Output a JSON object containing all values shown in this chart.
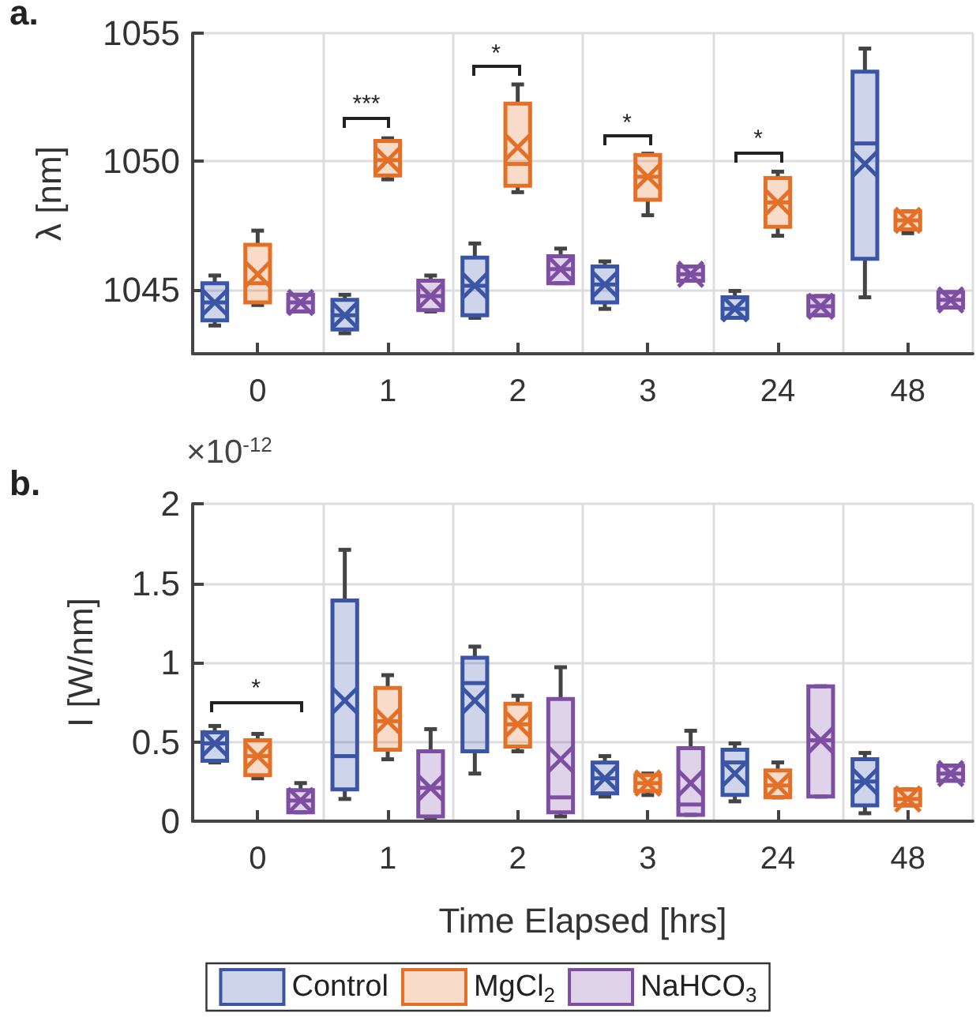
{
  "chart_data": [
    {
      "type": "box",
      "ylabel": "λ [nm]",
      "categories": [
        "0",
        "1",
        "2",
        "3",
        "24",
        "48"
      ],
      "ylim": [
        1042.5,
        1055
      ],
      "yticks": [
        1045,
        1050,
        1055
      ],
      "grid": true,
      "legend": false,
      "annotations": [
        "a.",
        "***",
        "*",
        "*",
        "*"
      ],
      "series": [
        {
          "color": "#3a55a6",
          "boxes": [
            {
              "low": 1043.6,
              "q1": 1043.8,
              "median": 1044.5,
              "q3": 1045.25,
              "high": 1045.55,
              "mean": 1044.5
            },
            {
              "low": 1043.3,
              "q1": 1043.45,
              "median": 1044.0,
              "q3": 1044.6,
              "high": 1044.8,
              "mean": 1044.0
            },
            {
              "low": 1043.9,
              "q1": 1044.0,
              "median": 1045.15,
              "q3": 1046.25,
              "high": 1046.8,
              "mean": 1045.15
            },
            {
              "low": 1044.25,
              "q1": 1044.5,
              "median": 1045.2,
              "q3": 1045.9,
              "high": 1046.1,
              "mean": 1045.2
            },
            {
              "low": 1043.9,
              "q1": 1043.9,
              "median": 1044.25,
              "q3": 1044.7,
              "high": 1044.95,
              "mean": 1044.25
            },
            {
              "low": 1044.7,
              "q1": 1046.2,
              "median": 1050.7,
              "q3": 1053.5,
              "high": 1054.4,
              "mean": 1049.9
            }
          ]
        },
        {
          "color": "#e46f26",
          "boxes": [
            {
              "low": 1044.4,
              "q1": 1044.5,
              "median": 1045.25,
              "q3": 1046.75,
              "high": 1047.3,
              "mean": 1045.6
            },
            {
              "low": 1049.3,
              "q1": 1049.45,
              "median": 1050.05,
              "q3": 1050.8,
              "high": 1050.9,
              "mean": 1050.05
            },
            {
              "low": 1048.8,
              "q1": 1049.05,
              "median": 1049.9,
              "q3": 1052.25,
              "high": 1053.0,
              "mean": 1050.55
            },
            {
              "low": 1047.9,
              "q1": 1048.5,
              "median": 1049.4,
              "q3": 1050.25,
              "high": 1050.3,
              "mean": 1049.4
            },
            {
              "low": 1047.1,
              "q1": 1047.45,
              "median": 1048.4,
              "q3": 1049.35,
              "high": 1049.6,
              "mean": 1048.4
            },
            {
              "low": 1047.2,
              "q1": 1047.35,
              "median": 1047.7,
              "q3": 1048.05,
              "high": 1048.05,
              "mean": 1047.7
            }
          ]
        },
        {
          "color": "#7d4ea2",
          "boxes": [
            {
              "low": 1044.15,
              "q1": 1044.15,
              "median": 1044.5,
              "q3": 1044.8,
              "high": 1044.8,
              "mean": 1044.5
            },
            {
              "low": 1044.15,
              "q1": 1044.2,
              "median": 1044.75,
              "q3": 1045.35,
              "high": 1045.55,
              "mean": 1044.75
            },
            {
              "low": 1045.25,
              "q1": 1045.25,
              "median": 1045.8,
              "q3": 1046.3,
              "high": 1046.6,
              "mean": 1045.8
            },
            {
              "low": 1045.35,
              "q1": 1045.35,
              "median": 1045.6,
              "q3": 1045.9,
              "high": 1045.9,
              "mean": 1045.6
            },
            {
              "low": 1044.0,
              "q1": 1044.0,
              "median": 1044.35,
              "q3": 1044.75,
              "high": 1044.75,
              "mean": 1044.35
            },
            {
              "low": 1044.3,
              "q1": 1044.3,
              "median": 1044.6,
              "q3": 1044.9,
              "high": 1044.9,
              "mean": 1044.6
            }
          ]
        }
      ]
    },
    {
      "type": "box",
      "ylabel": "I [W/nm]",
      "xlabel": "Time Elapsed [hrs]",
      "categories": [
        "0",
        "1",
        "2",
        "3",
        "24",
        "48"
      ],
      "ylim": [
        0,
        2
      ],
      "yticks": [
        0,
        0.5,
        1,
        1.5,
        2
      ],
      "grid": true,
      "legend": "bottom",
      "annotations": [
        "b.",
        "×10$^{-12}$",
        "*"
      ],
      "series": [
        {
          "name": "Control",
          "color": "#3a55a6",
          "boxes": [
            {
              "low": 0.37,
              "q1": 0.38,
              "median": 0.49,
              "q3": 0.56,
              "high": 0.6,
              "mean": 0.49
            },
            {
              "low": 0.14,
              "q1": 0.2,
              "median": 0.41,
              "q3": 1.39,
              "high": 1.71,
              "mean": 0.76
            },
            {
              "low": 0.3,
              "q1": 0.44,
              "median": 0.87,
              "q3": 1.03,
              "high": 1.1,
              "mean": 0.76
            },
            {
              "low": 0.155,
              "q1": 0.175,
              "median": 0.27,
              "q3": 0.37,
              "high": 0.41,
              "mean": 0.27
            },
            {
              "low": 0.125,
              "q1": 0.165,
              "median": 0.37,
              "q3": 0.45,
              "high": 0.49,
              "mean": 0.3
            },
            {
              "low": 0.05,
              "q1": 0.1,
              "median": 0.25,
              "q3": 0.39,
              "high": 0.43,
              "mean": 0.25
            }
          ]
        },
        {
          "name": "MgCl$_{2}$",
          "color": "#e46f26",
          "boxes": [
            {
              "low": 0.27,
              "q1": 0.29,
              "median": 0.41,
              "q3": 0.51,
              "high": 0.55,
              "mean": 0.41
            },
            {
              "low": 0.39,
              "q1": 0.45,
              "median": 0.63,
              "q3": 0.84,
              "high": 0.92,
              "mean": 0.63
            },
            {
              "low": 0.44,
              "q1": 0.47,
              "median": 0.61,
              "q3": 0.74,
              "high": 0.79,
              "mean": 0.61
            },
            {
              "low": 0.165,
              "q1": 0.19,
              "median": 0.24,
              "q3": 0.29,
              "high": 0.3,
              "mean": 0.24
            },
            {
              "low": 0.15,
              "q1": 0.15,
              "median": 0.225,
              "q3": 0.32,
              "high": 0.37,
              "mean": 0.225
            },
            {
              "low": 0.1,
              "q1": 0.1,
              "median": 0.14,
              "q3": 0.2,
              "high": 0.2,
              "mean": 0.14
            }
          ]
        },
        {
          "name": "NaHCO$_{3}$",
          "color": "#7d4ea2",
          "boxes": [
            {
              "low": 0.056,
              "q1": 0.056,
              "median": 0.13,
              "q3": 0.195,
              "high": 0.24,
              "mean": 0.13
            },
            {
              "low": 0.02,
              "q1": 0.03,
              "median": 0.21,
              "q3": 0.44,
              "high": 0.58,
              "mean": 0.21
            },
            {
              "low": 0.03,
              "q1": 0.056,
              "median": 0.15,
              "q3": 0.77,
              "high": 0.97,
              "mean": 0.39
            },
            {
              "low": 0.04,
              "q1": 0.04,
              "median": 0.105,
              "q3": 0.46,
              "high": 0.57,
              "mean": 0.24
            },
            {
              "low": 0.155,
              "q1": 0.155,
              "median": 0.51,
              "q3": 0.85,
              "high": 0.85,
              "mean": 0.51
            },
            {
              "low": 0.255,
              "q1": 0.255,
              "median": 0.3,
              "q3": 0.35,
              "high": 0.35,
              "mean": 0.3
            }
          ]
        }
      ]
    }
  ]
}
